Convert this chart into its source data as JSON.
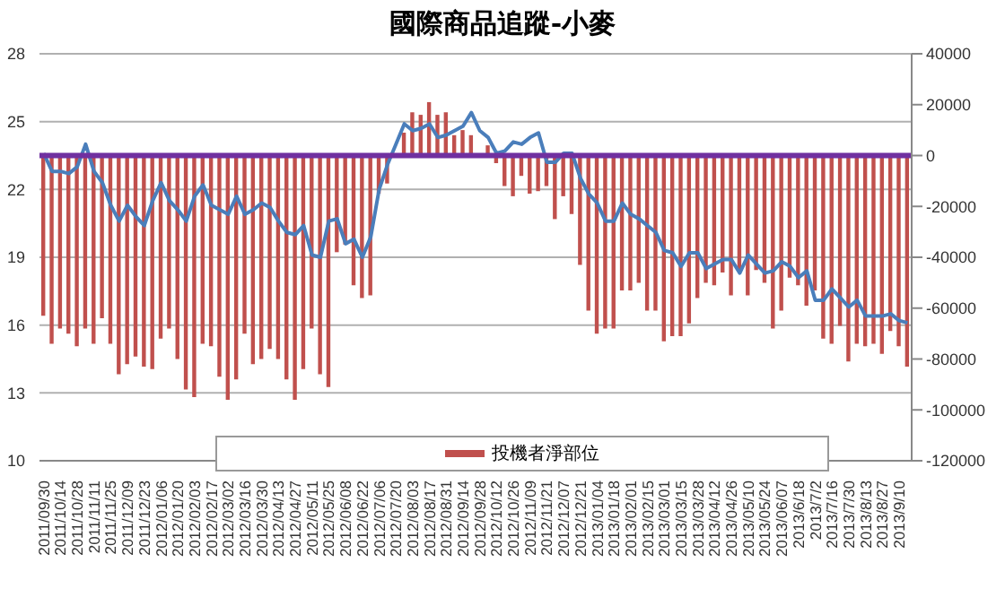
{
  "chart_data": {
    "type": "bar",
    "title": "國際商品追蹤-小麥",
    "categories": [
      "2011/09/30",
      null,
      "2011/10/14",
      null,
      "2011/10/28",
      null,
      "2011/11/11",
      null,
      "2011/11/25",
      null,
      "2011/12/09",
      null,
      "2011/12/23",
      null,
      "2012/01/06",
      null,
      "2012/01/20",
      null,
      "2012/02/03",
      null,
      "2012/02/17",
      null,
      "2012/03/02",
      null,
      "2012/03/16",
      null,
      "2012/03/30",
      null,
      "2012/04/13",
      null,
      "2012/04/27",
      null,
      "2012/05/11",
      null,
      "2012/05/25",
      null,
      "2012/06/08",
      null,
      "2012/06/22",
      null,
      "2012/07/06",
      null,
      "2012/07/20",
      null,
      "2012/08/03",
      null,
      "2012/08/17",
      null,
      "2012/08/31",
      null,
      "2012/09/14",
      null,
      "2012/09/28",
      null,
      "2012/10/12",
      null,
      "2012/10/26",
      null,
      "2012/11/09",
      null,
      "2012/11/21",
      null,
      "2012/12/07",
      null,
      "2012/12/21",
      null,
      "2013/01/04",
      null,
      "2013/01/18",
      null,
      "2013/02/01",
      null,
      "2013/02/15",
      null,
      "2013/03/01",
      null,
      "2013/03/15",
      null,
      "2013/03/28",
      null,
      "2013/04/12",
      null,
      "2013/04/26",
      null,
      "2013/05/10",
      null,
      "2013/05/24",
      null,
      "2013/06/07",
      null,
      "2013/6/18",
      null,
      "2013/7/2",
      null,
      "2013/7/16",
      null,
      "2013/7/30",
      null,
      "2013/8/13",
      null,
      "2013/8/27",
      null,
      "2013/9/10",
      null
    ],
    "series": [
      {
        "name": "投機者淨部位",
        "axis": "y2",
        "color": "#c0504d",
        "values": [
          -63000,
          -74000,
          -68000,
          -70000,
          -75000,
          -68000,
          -74000,
          -64000,
          -74000,
          -86000,
          -82000,
          -79000,
          -83000,
          -84000,
          -72000,
          -68000,
          -80000,
          -92000,
          -95000,
          -74000,
          -75000,
          -87000,
          -96000,
          -88000,
          -70000,
          -82000,
          -80000,
          -76000,
          -80000,
          -88000,
          -96000,
          -84000,
          -68000,
          -86000,
          -91000,
          -38000,
          -35000,
          -51000,
          -56000,
          -55000,
          -15000,
          -11000,
          null,
          9000,
          17000,
          16000,
          21000,
          16000,
          17000,
          8000,
          10000,
          8000,
          null,
          4000,
          -3000,
          -12000,
          -16000,
          -8000,
          -15000,
          -14000,
          -12000,
          -25000,
          -16000,
          -23000,
          -43000,
          -61000,
          -70000,
          -68000,
          -68000,
          -53000,
          -53000,
          -50000,
          -61000,
          -61000,
          -73000,
          -71000,
          -71000,
          -66000,
          -56000,
          -50000,
          -51000,
          -46000,
          -55000,
          -45000,
          -55000,
          -45000,
          -50000,
          -68000,
          -61000,
          -48000,
          -51000,
          -59000,
          -53000,
          -72000,
          -74000,
          -67000,
          -81000,
          -74000,
          -75000,
          -74000,
          -78000,
          -69000,
          -75000,
          -83000
        ]
      },
      {
        "type": "line",
        "color": "#4a7ebb",
        "values": [
          23.6,
          22.8,
          22.8,
          22.7,
          23.0,
          24.0,
          22.8,
          22.3,
          21.3,
          20.6,
          21.3,
          20.8,
          20.4,
          21.5,
          22.3,
          21.5,
          21.1,
          20.6,
          21.7,
          22.2,
          21.3,
          21.1,
          20.9,
          21.7,
          20.9,
          21.1,
          21.4,
          21.2,
          20.6,
          20.1,
          20.0,
          20.4,
          19.1,
          19.0,
          20.6,
          20.7,
          19.6,
          19.8,
          19.0,
          19.9,
          22.0,
          23.1,
          24.0,
          24.9,
          24.6,
          24.7,
          24.9,
          24.3,
          24.4,
          24.6,
          24.8,
          25.4,
          24.6,
          24.3,
          23.6,
          23.7,
          24.1,
          24.0,
          24.3,
          24.5,
          23.2,
          23.2,
          23.6,
          23.6,
          22.5,
          21.8,
          21.4,
          20.6,
          20.6,
          21.4,
          20.9,
          20.7,
          20.4,
          20.1,
          19.3,
          19.2,
          18.6,
          19.2,
          19.2,
          18.5,
          18.7,
          18.9,
          18.9,
          18.3,
          19.1,
          18.7,
          18.3,
          18.4,
          18.8,
          18.6,
          18.1,
          18.4,
          17.1,
          17.1,
          17.6,
          17.2,
          16.8,
          17.1,
          16.4,
          16.4,
          16.4,
          16.5,
          16.2,
          16.1
        ]
      }
    ],
    "ylim": [
      10,
      28
    ],
    "yticks": [
      10,
      13,
      16,
      19,
      22,
      25,
      28
    ],
    "y2lim": [
      -120000,
      40000
    ],
    "y2ticks": [
      -120000,
      -100000,
      -80000,
      -60000,
      -40000,
      -20000,
      0,
      20000,
      40000
    ],
    "ref_lines": [
      {
        "axis": "y2",
        "value": 0,
        "color": "#7030a0"
      }
    ],
    "grid": "y",
    "legend": "bottom",
    "marker": "none"
  }
}
